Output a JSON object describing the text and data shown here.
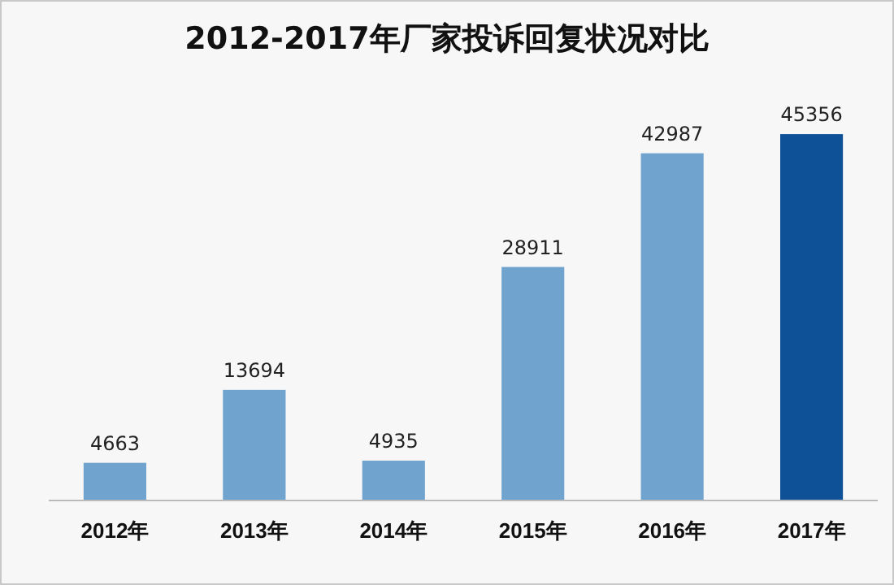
{
  "chart_data": {
    "type": "bar",
    "title": "2012-2017年厂家投诉回复状况对比",
    "categories": [
      "2012年",
      "2013年",
      "2014年",
      "2015年",
      "2016年",
      "2017年"
    ],
    "values": [
      4663,
      13694,
      4935,
      28911,
      42987,
      45356
    ],
    "colors": [
      "#70a4cf",
      "#70a4cf",
      "#70a4cf",
      "#70a4cf",
      "#70a4cf",
      "#0e5196"
    ],
    "data_labels": true
  }
}
